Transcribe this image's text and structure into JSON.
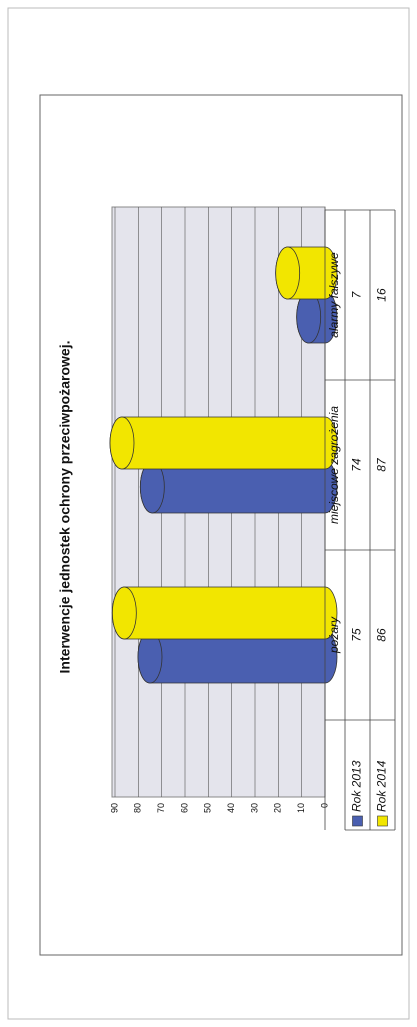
{
  "chart_data": {
    "type": "bar",
    "title": "Interwencje jednostek ochrony przeciwpożarowej.",
    "categories": [
      "pożary",
      "miejscowe zagrożenia",
      "alarmy fałszywe"
    ],
    "series": [
      {
        "name": "Rok 2013",
        "color": "#4a5fb0",
        "values": [
          75,
          74,
          7
        ]
      },
      {
        "name": "Rok 2014",
        "color": "#f2e600",
        "values": [
          86,
          87,
          16
        ]
      }
    ],
    "ylim": [
      0,
      90
    ],
    "yticks": [
      0,
      10,
      20,
      30,
      40,
      50,
      60,
      70,
      80,
      90
    ],
    "grid": true
  }
}
